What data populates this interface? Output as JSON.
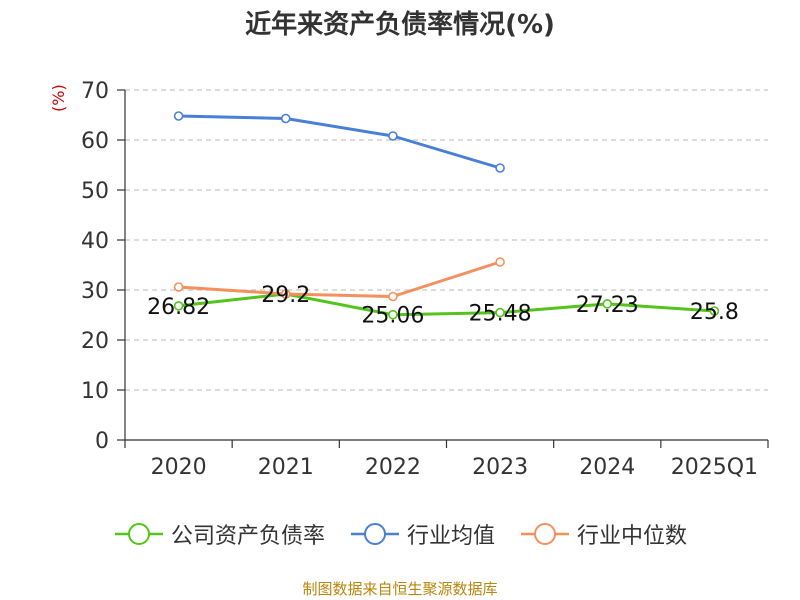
{
  "chart_data": {
    "type": "line",
    "title": "近年来资产负债率情况(%)",
    "ylabel": "(%)",
    "ylim": [
      0,
      70
    ],
    "yticks": [
      0,
      10,
      20,
      30,
      40,
      50,
      60,
      70
    ],
    "categories": [
      "2020",
      "2021",
      "2022",
      "2023",
      "2024",
      "2025Q1"
    ],
    "grid": true,
    "legend_position": "bottom",
    "series": [
      {
        "name": "公司资产负债率",
        "color": "#52c41a",
        "values": [
          26.82,
          29.2,
          25.06,
          25.48,
          27.23,
          25.8
        ],
        "labels": [
          "26.82",
          "29.2",
          "25.06",
          "25.48",
          "27.23",
          "25.8"
        ]
      },
      {
        "name": "行业均值",
        "color": "#4a7fd8",
        "values": [
          64.8,
          64.3,
          60.8,
          54.4,
          null,
          null
        ]
      },
      {
        "name": "行业中位数",
        "color": "#f4905e",
        "values": [
          30.6,
          29.2,
          28.7,
          35.6,
          null,
          null
        ]
      }
    ]
  },
  "source_text": "制图数据来自恒生聚源数据库"
}
